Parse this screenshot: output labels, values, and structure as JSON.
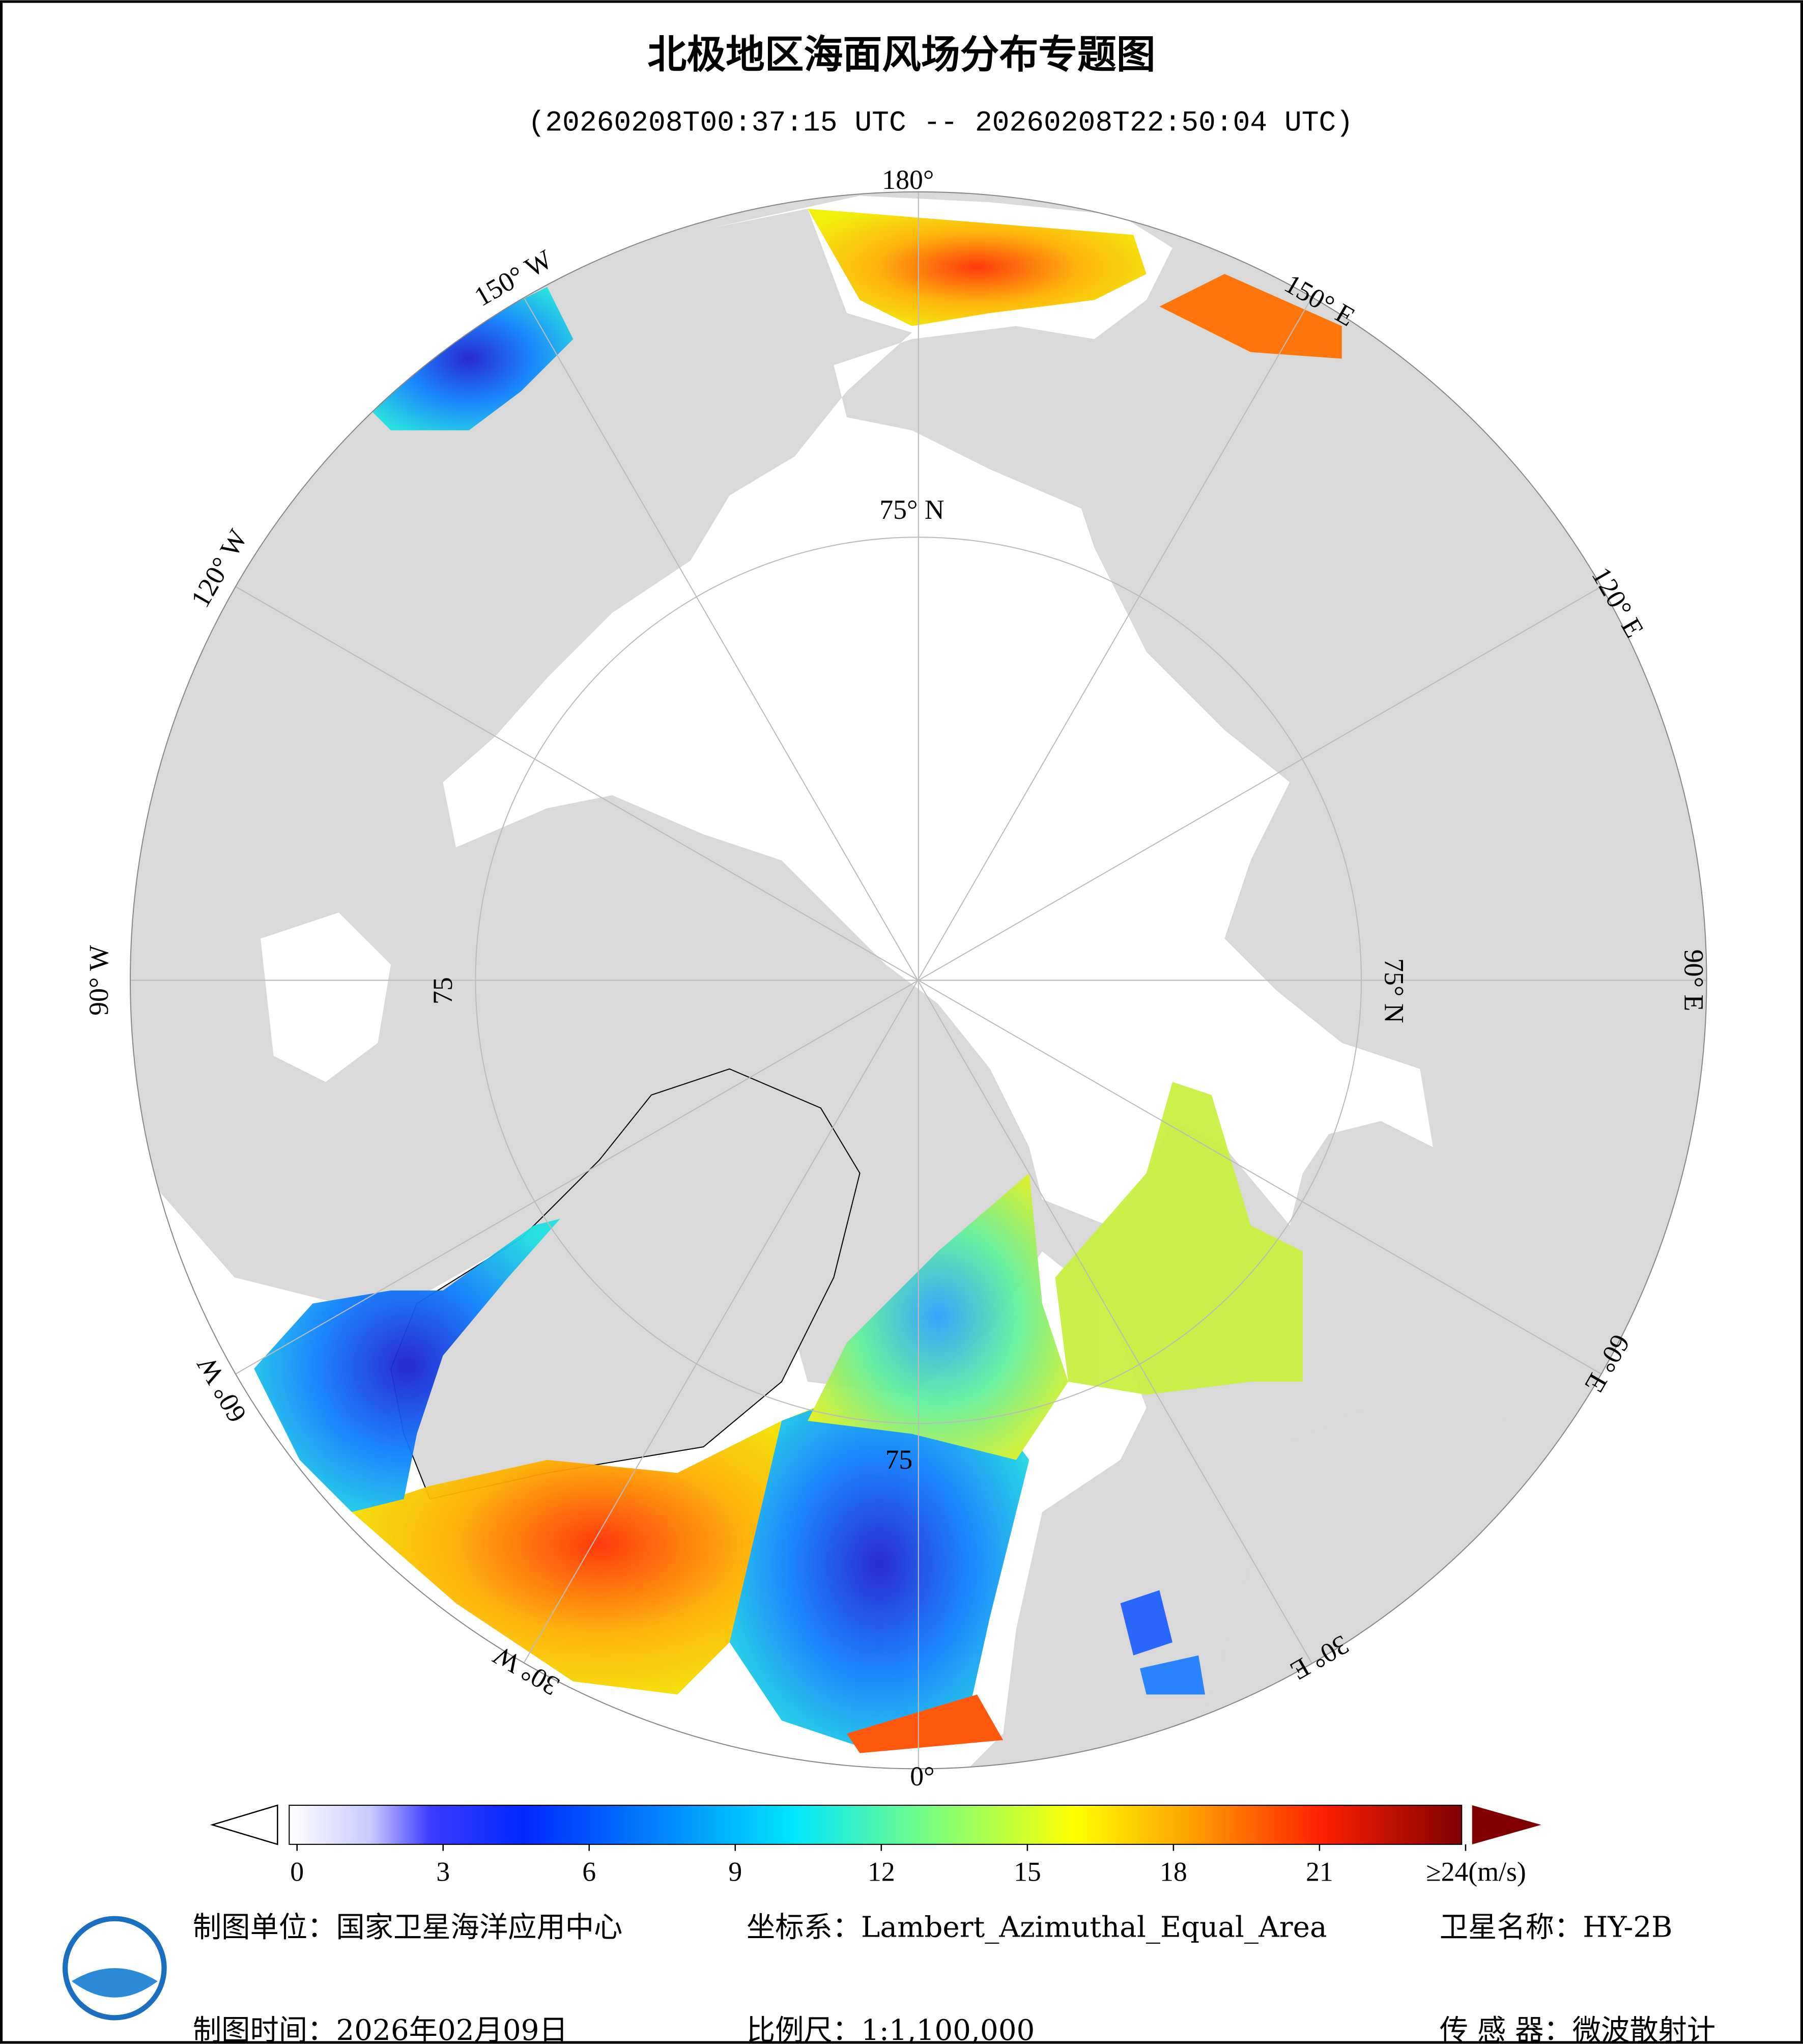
{
  "title": "北极地区海面风场分布专题图",
  "subtitle": "(20260208T00:37:15 UTC -- 20260208T22:50:04 UTC)",
  "map": {
    "longitude_labels": [
      "180°",
      "150° E",
      "120° E",
      "90° E",
      "60° E",
      "30° E",
      "0°",
      "30° W",
      "60° W",
      "90° W",
      "120° W",
      "150° W"
    ],
    "latitude_labels": [
      "75° N",
      "75° N",
      "75",
      "75"
    ]
  },
  "colorbar": {
    "lim": [
      0,
      24
    ],
    "ticks": [
      0,
      3,
      6,
      9,
      12,
      15,
      18,
      21,
      {
        "value": 24,
        "label": "≥24(m/s)"
      }
    ]
  },
  "footer": {
    "unit": "制图单位：国家卫星海洋应用中心",
    "crs": "坐标系：Lambert_Azimuthal_Equal_Area",
    "satellite": "卫星名称：HY-2B",
    "date": "制图时间：2026年02月09日",
    "scale": "比例尺：1:1,100,000",
    "sensor": "传 感 器：微波散射计"
  }
}
